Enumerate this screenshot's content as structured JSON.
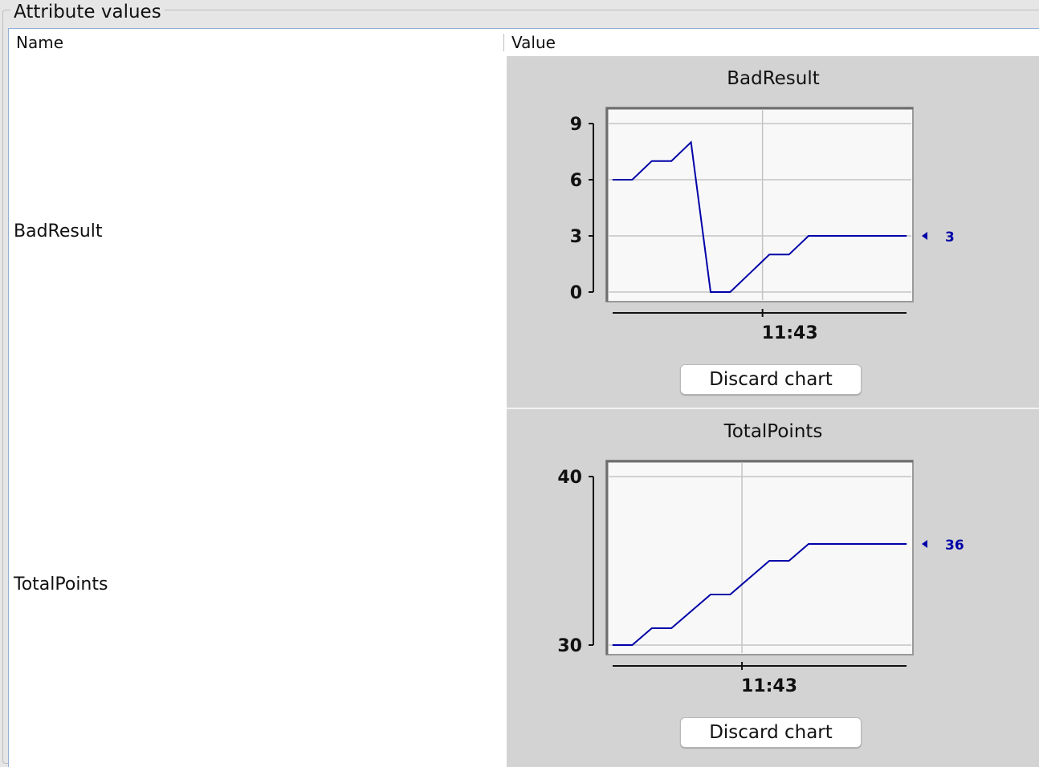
{
  "panel": {
    "legend": "Attribute values"
  },
  "table": {
    "columns": [
      "Name",
      "Value"
    ],
    "rows": [
      {
        "name": "BadResult",
        "chart_title": "BadResult",
        "button": "Discard chart",
        "current_value": "3"
      },
      {
        "name": "TotalPoints",
        "chart_title": "TotalPoints",
        "button": "Discard chart",
        "current_value": "36"
      }
    ]
  },
  "colors": {
    "series_line": "#0000a8",
    "plot_bg": "#f8f8f8",
    "cell_bg": "#d3d3d3"
  },
  "chart_data": [
    {
      "type": "line",
      "title": "BadResult",
      "xlabel": "",
      "ylabel": "",
      "ylim": [
        0,
        9
      ],
      "yticks": [
        0,
        3,
        6,
        9
      ],
      "xticks": [
        "11:43"
      ],
      "x": [
        "t0",
        "t1",
        "t2",
        "t3",
        "t4",
        "t5",
        "t6",
        "t7",
        "t8",
        "t9",
        "t10",
        "t11",
        "t12",
        "t13",
        "t14",
        "t15"
      ],
      "values": [
        6,
        6,
        7,
        7,
        8,
        0,
        0,
        1,
        2,
        2,
        3,
        3,
        3,
        3,
        3,
        3
      ],
      "last_value_label": "3",
      "grid": true
    },
    {
      "type": "line",
      "title": "TotalPoints",
      "xlabel": "",
      "ylabel": "",
      "ylim": [
        30,
        40
      ],
      "yticks": [
        30,
        40
      ],
      "xticks": [
        "11:43"
      ],
      "x": [
        "t0",
        "t1",
        "t2",
        "t3",
        "t4",
        "t5",
        "t6",
        "t7",
        "t8",
        "t9",
        "t10",
        "t11",
        "t12",
        "t13",
        "t14",
        "t15"
      ],
      "values": [
        30,
        30,
        31,
        31,
        32,
        33,
        33,
        34,
        35,
        35,
        36,
        36,
        36,
        36,
        36,
        36
      ],
      "last_value_label": "36",
      "grid": true
    }
  ]
}
